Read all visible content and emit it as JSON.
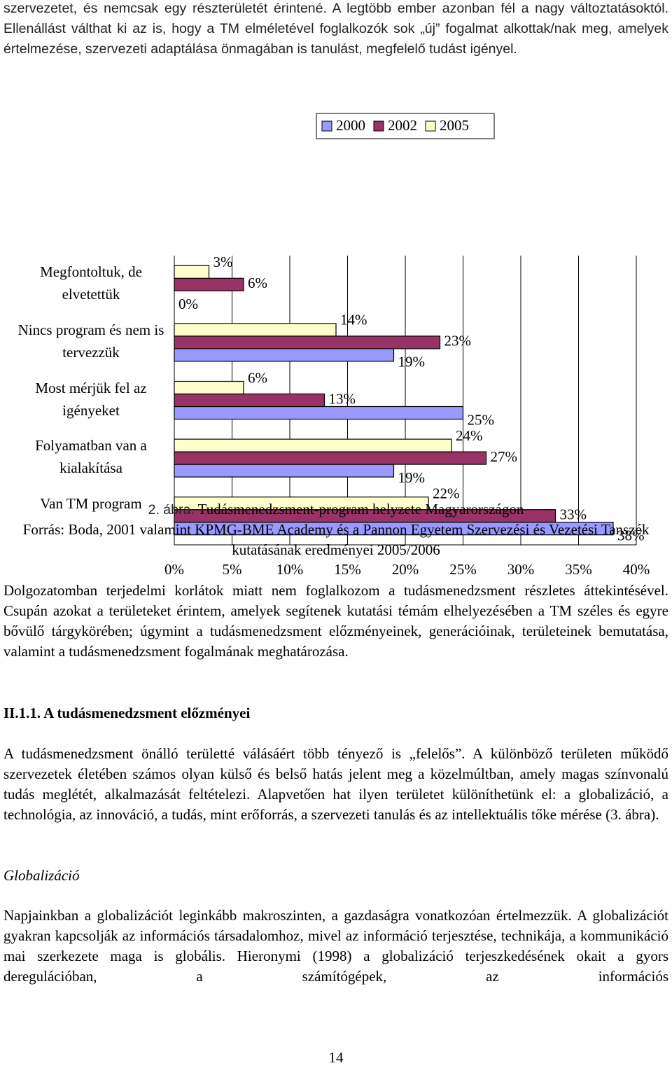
{
  "top_paragraph": "szervezetet, és nemcsak egy részterületét érintené. A legtöbb ember azonban fél a nagy változtatásoktól. Ellenállást válthat ki az is, hogy a TM elméletével foglalkozók sok „új” fogalmat alkottak/nak meg, amelyek értelmezése, szervezeti adaptálása önmagában is tanulást, megfelelő tudást igényel.",
  "chart_data": {
    "type": "bar",
    "orientation": "horizontal",
    "categories": [
      "Megfontoltuk, de elvetettük",
      "Nincs program és nem is tervezzük",
      "Most mérjük fel az igényeket",
      "Folyamatban van a kialakítása",
      "Van TM program"
    ],
    "series": [
      {
        "name": "2000",
        "color": "#9999ff",
        "values": [
          0,
          19,
          25,
          19,
          38
        ],
        "value_labels": [
          "0%",
          "19%",
          "25%",
          "19%",
          "38%"
        ]
      },
      {
        "name": "2002",
        "color": "#993366",
        "values": [
          6,
          23,
          13,
          27,
          33
        ],
        "value_labels": [
          "6%",
          "23%",
          "13%",
          "27%",
          "33%"
        ]
      },
      {
        "name": "2005",
        "color": "#ffffcc",
        "values": [
          3,
          14,
          6,
          24,
          22
        ],
        "value_labels": [
          "3%",
          "14%",
          "6%",
          "24%",
          "22%"
        ]
      }
    ],
    "xlim": [
      0,
      40
    ],
    "xticks": [
      {
        "value": 0,
        "label": "0%"
      },
      {
        "value": 5,
        "label": "5%"
      },
      {
        "value": 10,
        "label": "10%"
      },
      {
        "value": 15,
        "label": "15%"
      },
      {
        "value": 20,
        "label": "20%"
      },
      {
        "value": 25,
        "label": "25%"
      },
      {
        "value": 30,
        "label": "30%"
      },
      {
        "value": 35,
        "label": "35%"
      },
      {
        "value": 40,
        "label": "40%"
      }
    ],
    "grid": true,
    "legend": "top"
  },
  "caption": {
    "label": "2. ábra.",
    "title": "Tudásmenedzsment-program helyzete Magyarországon",
    "source": "Forrás: Boda, 2001 valamint KPMG-BME Academy és a Pannon Egyetem Szervezési és Vezetési Tanszék kutatásának eredményei 2005/2006"
  },
  "paragraph_1": "Dolgozatomban terjedelmi korlátok miatt nem foglalkozom a tudásmenedzsment részletes áttekintésével. Csupán azokat a területeket érintem, amelyek segítenek kutatási témám elhelyezésében a TM széles és egyre bővülő tárgykörében; úgymint a tudásmenedzsment előzményeinek, generációinak, területeinek bemutatása, valamint a tudásmenedzsment fogalmának meghatározása.",
  "heading": "II.1.1. A tudásmenedzsment előzményei",
  "paragraph_2": "A tudásmenedzsment önálló területté válásáért több tényező is „felelős”. A különböző területen működő szervezetek életében számos olyan külső és belső hatás jelent meg a közelmúltban, amely magas színvonalú tudás meglétét, alkalmazását feltételezi. Alapvetően hat ilyen területet különíthetünk el: a globalizáció, a technológia, az innováció, a tudás, mint erőforrás, a szervezeti tanulás és az intellektuális tőke mérése (3. ábra).",
  "subheading": "Globalizáció",
  "paragraph_3": "Napjainkban a globalizációt leginkább makroszinten, a gazdaságra vonatkozóan értelmezzük. A globalizációt gyakran kapcsolják az információs társadalomhoz, mivel az információ terjesztése, technikája, a kommunikáció mai szerkezete maga is globális. Hieronymi (1998) a globalizáció terjeszkedésének okait a gyors deregulációban, a számítógépek, az információs",
  "page_number": "14"
}
